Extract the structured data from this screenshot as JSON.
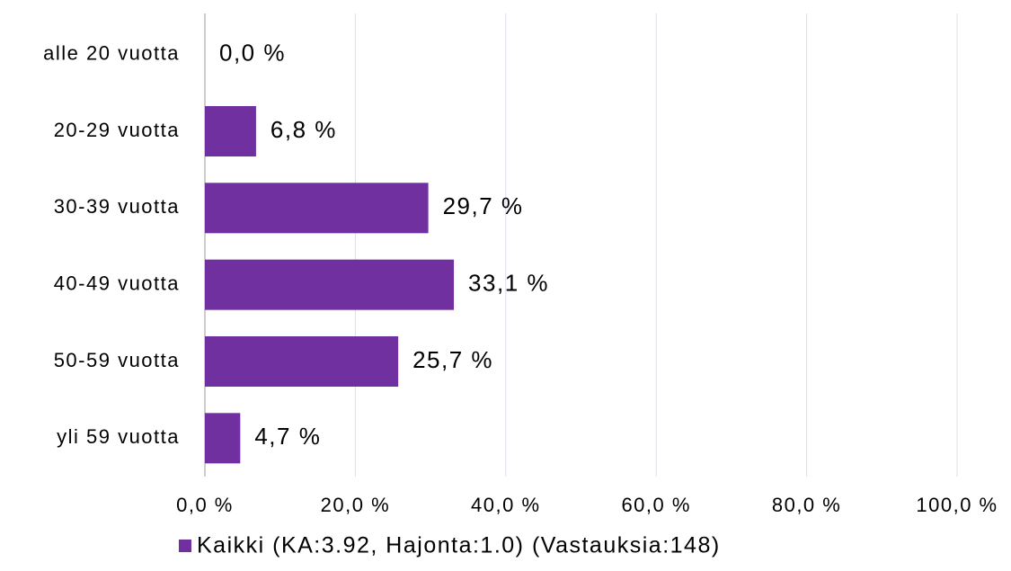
{
  "chart_data": {
    "type": "bar",
    "orientation": "horizontal",
    "categories": [
      "alle 20 vuotta",
      "20-29 vuotta",
      "30-39 vuotta",
      "40-49 vuotta",
      "50-59 vuotta",
      "yli 59 vuotta"
    ],
    "series": [
      {
        "name": "Kaikki (KA:3.92, Hajonta:1.0) (Vastauksia:148)",
        "color": "#7030a0",
        "values": [
          0.0,
          6.8,
          29.7,
          33.1,
          25.7,
          4.7
        ],
        "value_labels": [
          "0,0 %",
          "6,8 %",
          "29,7 %",
          "33,1 %",
          "25,7 %",
          "4,7 %"
        ]
      }
    ],
    "xlim": [
      0,
      100
    ],
    "xticks": [
      {
        "value": 0,
        "label": "0,0 %"
      },
      {
        "value": 20,
        "label": "20,0 %"
      },
      {
        "value": 40,
        "label": "40,0 %"
      },
      {
        "value": 60,
        "label": "60,0 %"
      },
      {
        "value": 80,
        "label": "80,0 %"
      },
      {
        "value": 100,
        "label": "100,0 %"
      }
    ],
    "grid": true,
    "legend": "bottom"
  }
}
